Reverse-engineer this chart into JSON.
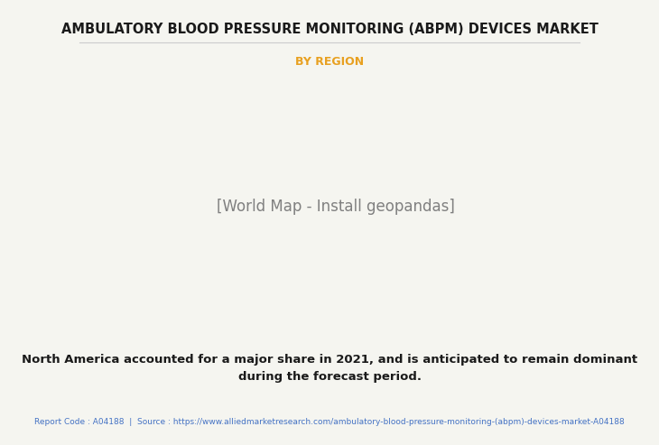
{
  "title": "AMBULATORY BLOOD PRESSURE MONITORING (ABPM) DEVICES MARKET",
  "subtitle": "BY REGION",
  "subtitle_color": "#E8A020",
  "title_color": "#1a1a1a",
  "bg_color": "#f5f5f0",
  "body_text": "North America accounted for a major share in 2021, and is anticipated to remain dominant\nduring the forecast period.",
  "footer_text": "Report Code : A04188  |  Source : https://www.alliedmarketresearch.com/ambulatory-blood-pressure-monitoring-(abpm)-devices-market-A04188",
  "footer_color": "#4472C4",
  "dominant_color": "#E8A020",
  "light_color": "#d4e8c2",
  "highlight_color": "#E8A020",
  "north_america_color": "#f0f0e0",
  "europe_asia_color": "#d4e8c2"
}
